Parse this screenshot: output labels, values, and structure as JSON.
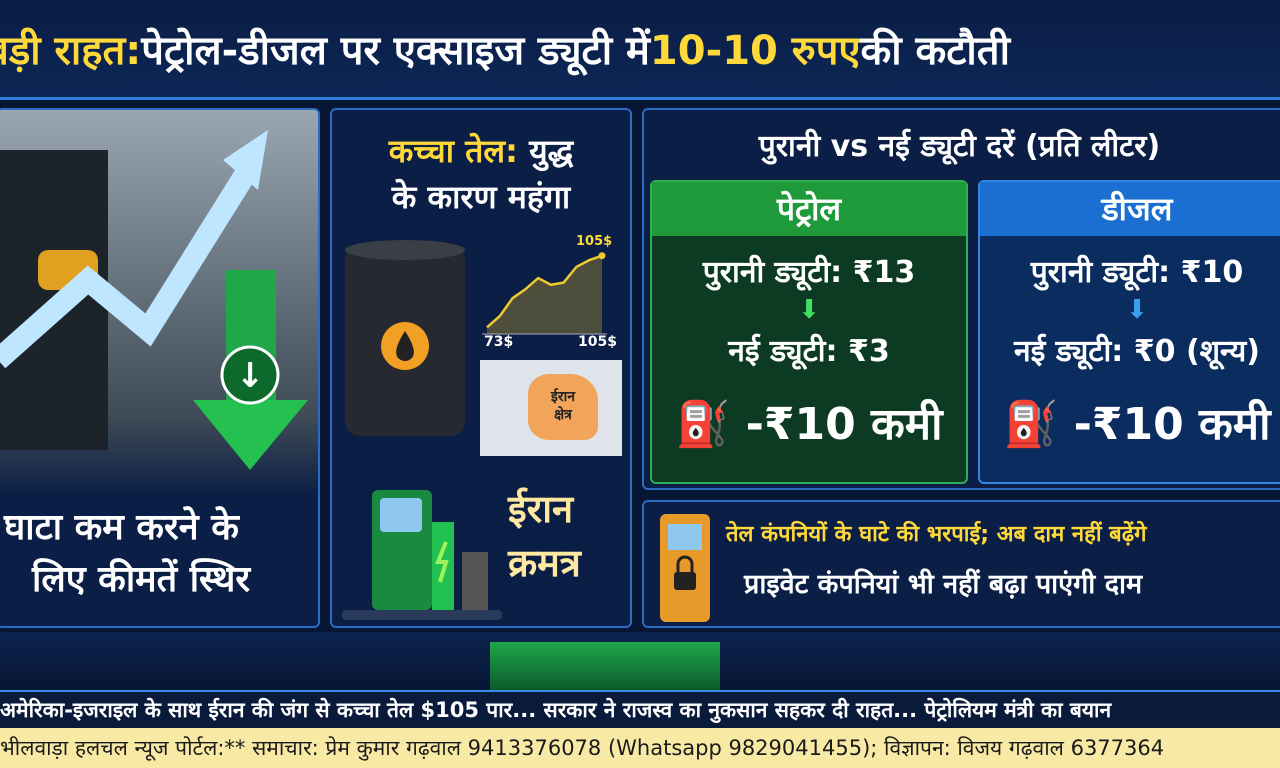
{
  "header": {
    "title_prefix": "बड़ी राहत:",
    "title_main": " पेट्रोल-डीजल पर एक्साइज ड्यूटी में ",
    "title_highlight": "10-10 रुपए",
    "title_suffix": " की कटौती"
  },
  "left_panel": {
    "line1": "घाटा कम करने के",
    "line2": "लिए कीमतें स्थिर"
  },
  "middle_panel": {
    "title_yellow": "कच्चा तेल:",
    "title_white1": " युद्ध",
    "title_white2": "के कारण महंगा",
    "chart_peak_label": "105$",
    "chart_start_label": "73$",
    "chart_end_label": "105$",
    "map_label1": "ईरान",
    "map_label2": "क्षेत्र",
    "bottom_label1": "ईरान",
    "bottom_label2": "क्रमत्र"
  },
  "chart_data": {
    "type": "area",
    "x_labels": [
      "73$",
      "105$"
    ],
    "values": [
      73,
      78,
      86,
      90,
      95,
      92,
      93,
      100,
      103,
      105
    ],
    "annotations": [
      "105$"
    ]
  },
  "duty": {
    "title": "पुरानी vs नई ड्यूटी दरें (प्रति लीटर)",
    "cards": [
      {
        "name": "पेट्रोल",
        "old": "पुरानी ड्यूटी: ₹13",
        "new": "नई ड्यूटी: ₹3",
        "cut": "-₹10 कमी",
        "color": "#1e9a3a"
      },
      {
        "name": "डीजल",
        "old": "पुरानी ड्यूटी: ₹10",
        "new": "नई ड्यूटी: ₹0 (शून्य)",
        "cut": "-₹10 कमी",
        "color": "#1a6fd0"
      }
    ]
  },
  "companies": {
    "line1": "तेल कंपनियों के घाटे की भरपाई; अब दाम नहीं बढ़ेंगे",
    "line2": "प्राइवेट कंपनियां भी नहीं बढ़ा पाएंगी दाम"
  },
  "ticker": "अमेरिका-इजराइल के साथ ईरान की जंग से कच्चा तेल $105 पार... सरकार ने राजस्व का नुकसान सहकर दी राहत... पेट्रोलियम मंत्री का बयान",
  "footer": "भीलवाड़ा हलचल न्यूज पोर्टल:** समाचार: प्रेम कुमार गढ़वाल 9413376078 (Whatsapp 9829041455); विज्ञापन: विजय गढ़वाल 6377364"
}
